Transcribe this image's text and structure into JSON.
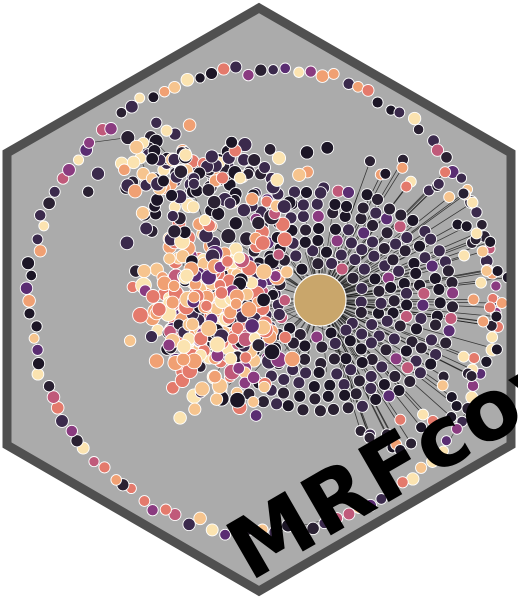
{
  "logo": {
    "text": "MRFcov",
    "colors": {
      "background": "#ffffff",
      "hex_fill": "#ababab",
      "hex_border": "#505050",
      "edge": "#1a1a1a",
      "text": "#000000",
      "node_outline": "#ffffff",
      "hub": "#c9a66b",
      "node_palette": [
        "#1c1626",
        "#2a2132",
        "#3b2a4c",
        "#5a2d72",
        "#8a3b80",
        "#c05a7a",
        "#e47a6c",
        "#f0a073",
        "#f6c48e",
        "#fbe3b0"
      ]
    }
  }
}
